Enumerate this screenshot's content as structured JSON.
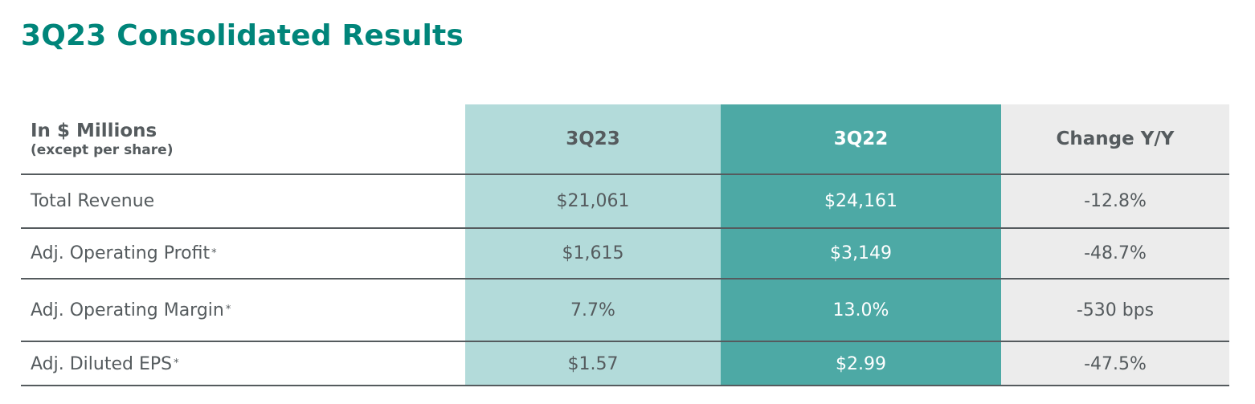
{
  "title": "3Q23 Consolidated Results",
  "table": {
    "header": {
      "label_main": "In $ Millions",
      "label_sub": "(except per share)",
      "columns": [
        "3Q23",
        "3Q22",
        "Change Y/Y"
      ]
    },
    "rows": [
      {
        "label": "Total Revenue",
        "footnote": "",
        "q3_2023": "$21,061",
        "q3_2022": "$24,161",
        "change": "-12.8%"
      },
      {
        "label": "Adj. Operating Profit",
        "footnote": "*",
        "q3_2023": "$1,615",
        "q3_2022": "$3,149",
        "change": "-48.7%"
      },
      {
        "label": "Adj. Operating Margin",
        "footnote": "*",
        "q3_2023": "7.7%",
        "q3_2022": "13.0%",
        "change": "-530 bps"
      },
      {
        "label": "Adj. Diluted EPS",
        "footnote": "*",
        "q3_2023": "$1.57",
        "q3_2022": "$2.99",
        "change": "-47.5%"
      }
    ]
  },
  "colors": {
    "title": "#00857a",
    "col_3q23_bg": "#b3dbda",
    "col_3q22_bg": "#4da9a5",
    "col_change_bg": "#ececec",
    "text": "#555b5e"
  }
}
